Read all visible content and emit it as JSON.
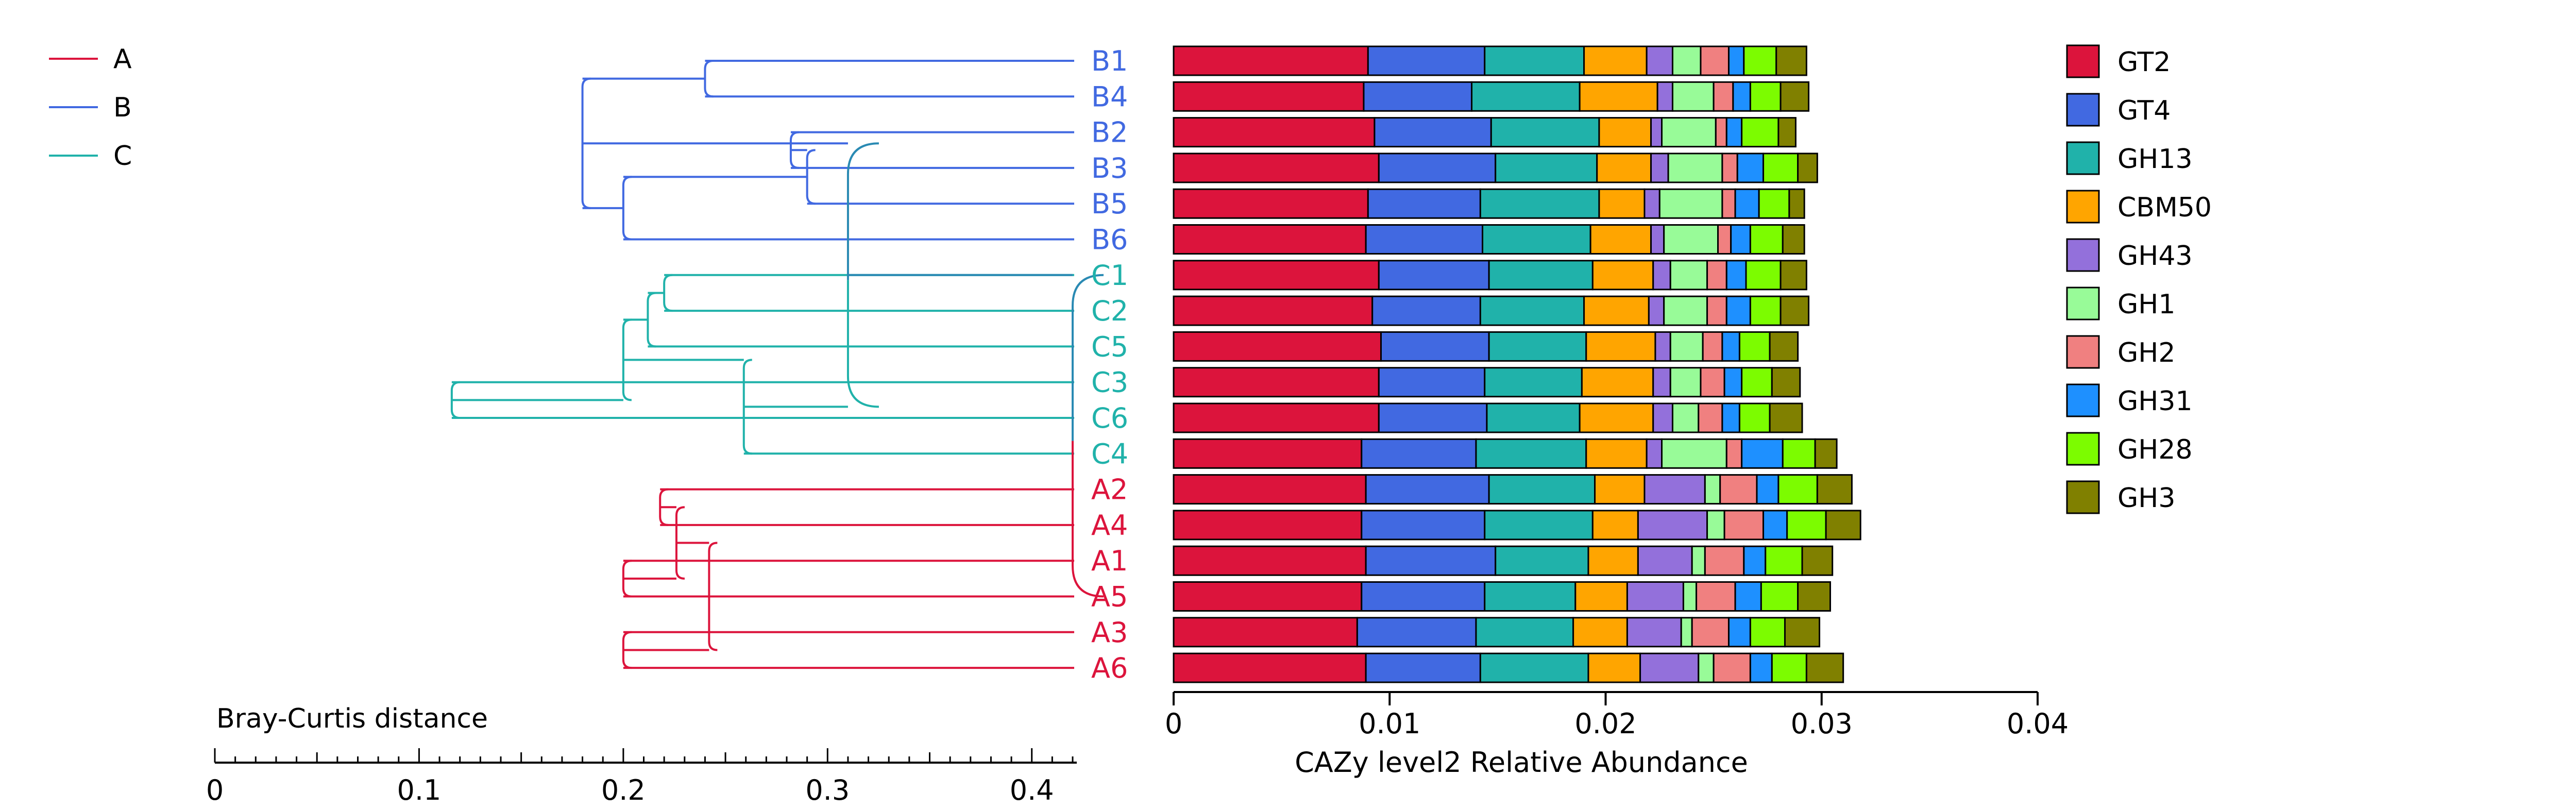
{
  "chart_data": {
    "type": "bar",
    "stacked": true,
    "orientation": "horizontal",
    "xlabel": "CAZy level2 Relative Abundance",
    "xlim": [
      0,
      0.04
    ],
    "xticks": [
      0,
      0.01,
      0.02,
      0.03,
      0.04
    ],
    "xtick_labels": [
      "0",
      "0.01",
      "0.02",
      "0.03",
      "0.04"
    ],
    "legend_position": "right",
    "categories": [
      "B1",
      "B4",
      "B2",
      "B3",
      "B5",
      "B6",
      "C1",
      "C2",
      "C5",
      "C3",
      "C6",
      "C4",
      "A2",
      "A4",
      "A1",
      "A5",
      "A3",
      "A6"
    ],
    "series": [
      {
        "name": "GT2",
        "color": "#DC143C",
        "values": [
          0.009,
          0.0088,
          0.0093,
          0.0095,
          0.009,
          0.0089,
          0.0095,
          0.0092,
          0.0096,
          0.0095,
          0.0095,
          0.0087,
          0.0089,
          0.0087,
          0.0089,
          0.0087,
          0.0085,
          0.0089
        ]
      },
      {
        "name": "GT4",
        "color": "#4169E1",
        "values": [
          0.0054,
          0.005,
          0.0054,
          0.0054,
          0.0052,
          0.0054,
          0.0051,
          0.005,
          0.005,
          0.0049,
          0.005,
          0.0053,
          0.0057,
          0.0057,
          0.006,
          0.0057,
          0.0055,
          0.0053
        ]
      },
      {
        "name": "GH13",
        "color": "#20B2AA",
        "values": [
          0.0046,
          0.005,
          0.005,
          0.0047,
          0.0055,
          0.005,
          0.0048,
          0.0048,
          0.0045,
          0.0045,
          0.0043,
          0.0051,
          0.0049,
          0.005,
          0.0043,
          0.0042,
          0.0045,
          0.005
        ]
      },
      {
        "name": "CBM50",
        "color": "#FFA500",
        "values": [
          0.0029,
          0.0036,
          0.0024,
          0.0025,
          0.0021,
          0.0028,
          0.0028,
          0.003,
          0.0032,
          0.0033,
          0.0034,
          0.0028,
          0.0023,
          0.0021,
          0.0023,
          0.0024,
          0.0025,
          0.0024
        ]
      },
      {
        "name": "GH43",
        "color": "#9370DB",
        "values": [
          0.0012,
          0.0007,
          0.0005,
          0.0008,
          0.0007,
          0.0006,
          0.0008,
          0.0007,
          0.0007,
          0.0008,
          0.0009,
          0.0007,
          0.0028,
          0.0032,
          0.0025,
          0.0026,
          0.0025,
          0.0027
        ]
      },
      {
        "name": "GH1",
        "color": "#98FB98",
        "values": [
          0.0013,
          0.0019,
          0.0025,
          0.0025,
          0.0029,
          0.0025,
          0.0017,
          0.002,
          0.0015,
          0.0014,
          0.0012,
          0.003,
          0.0007,
          0.0008,
          0.0006,
          0.0006,
          0.0005,
          0.0007
        ]
      },
      {
        "name": "GH2",
        "color": "#F08080",
        "values": [
          0.0013,
          0.0009,
          0.0005,
          0.0007,
          0.0006,
          0.0006,
          0.0009,
          0.0009,
          0.0009,
          0.0011,
          0.0011,
          0.0007,
          0.0017,
          0.0018,
          0.0018,
          0.0018,
          0.0017,
          0.0017
        ]
      },
      {
        "name": "GH31",
        "color": "#1E90FF",
        "values": [
          0.0007,
          0.0008,
          0.0007,
          0.0012,
          0.0011,
          0.0009,
          0.0009,
          0.0011,
          0.0008,
          0.0008,
          0.0008,
          0.0019,
          0.001,
          0.0011,
          0.001,
          0.0012,
          0.001,
          0.001
        ]
      },
      {
        "name": "GH28",
        "color": "#7CFC00",
        "values": [
          0.0015,
          0.0014,
          0.0017,
          0.0016,
          0.0014,
          0.0015,
          0.0016,
          0.0014,
          0.0014,
          0.0014,
          0.0014,
          0.0015,
          0.0018,
          0.0018,
          0.0017,
          0.0017,
          0.0016,
          0.0016
        ]
      },
      {
        "name": "GH3",
        "color": "#808000",
        "values": [
          0.0014,
          0.0013,
          0.0008,
          0.0009,
          0.0007,
          0.001,
          0.0012,
          0.0013,
          0.0013,
          0.0013,
          0.0015,
          0.001,
          0.0016,
          0.0016,
          0.0014,
          0.0015,
          0.0016,
          0.0017
        ]
      }
    ],
    "dendrogram": {
      "scale_label": "Bray-Curtis distance",
      "xlim": [
        0,
        0.42
      ],
      "ticks": [
        0,
        0.1,
        0.2,
        0.3,
        0.4
      ],
      "tick_labels": [
        "0",
        "0.1",
        "0.2",
        "0.3",
        "0.4"
      ],
      "leaf_groups": [
        "B",
        "B",
        "B",
        "B",
        "B",
        "B",
        "C",
        "C",
        "C",
        "C",
        "C",
        "C",
        "A",
        "A",
        "A",
        "A",
        "A",
        "A"
      ],
      "merges": [
        {
          "id": "n1",
          "left": "B2",
          "right": "B3",
          "height": 0.282
        },
        {
          "id": "n2",
          "left": "n1",
          "right": "B5",
          "height": 0.29
        },
        {
          "id": "n3",
          "left": "B1",
          "right": "B4",
          "height": 0.24
        },
        {
          "id": "n4",
          "left": "n2",
          "right": "B6",
          "height": 0.2
        },
        {
          "id": "n5",
          "left": "n3",
          "right": "n4",
          "height": 0.18
        },
        {
          "id": "n6",
          "left": "C1",
          "right": "C2",
          "height": 0.22
        },
        {
          "id": "n7",
          "left": "n6",
          "right": "C5",
          "height": 0.212
        },
        {
          "id": "n8",
          "left": "C3",
          "right": "C6",
          "height": 0.116
        },
        {
          "id": "n9",
          "left": "n7",
          "right": "n8",
          "height": 0.2
        },
        {
          "id": "n10",
          "left": "n9",
          "right": "C4",
          "height": 0.259
        },
        {
          "id": "n11",
          "left": "n5",
          "right": "n10",
          "height": 0.31
        },
        {
          "id": "n12",
          "left": "A2",
          "right": "A4",
          "height": 0.218
        },
        {
          "id": "n13",
          "left": "A1",
          "right": "A5",
          "height": 0.2
        },
        {
          "id": "n14",
          "left": "n12",
          "right": "n13",
          "height": 0.226
        },
        {
          "id": "n15",
          "left": "A3",
          "right": "A6",
          "height": 0.2
        },
        {
          "id": "n16",
          "left": "n14",
          "right": "n15",
          "height": 0.242
        },
        {
          "id": "n17",
          "left": "n11",
          "right": "n16",
          "height": 0.42
        }
      ]
    },
    "group_legend": [
      {
        "name": "A",
        "color": "#DC143C"
      },
      {
        "name": "B",
        "color": "#4169E1"
      },
      {
        "name": "C",
        "color": "#20B2AA"
      }
    ]
  }
}
